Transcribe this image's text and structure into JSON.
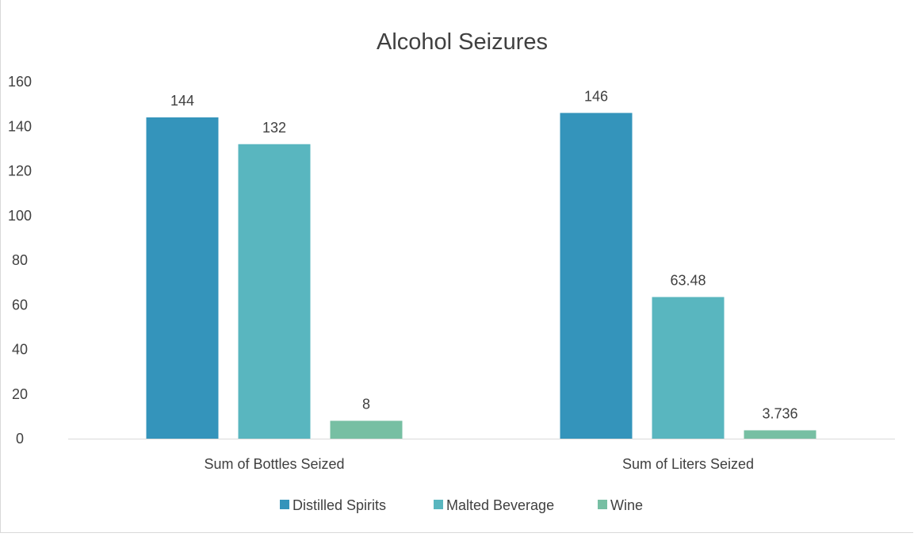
{
  "chart_data": {
    "type": "bar",
    "title": "Alcohol Seizures",
    "categories": [
      "Sum of Bottles Seized",
      "Sum of Liters Seized"
    ],
    "series": [
      {
        "name": "Distilled Spirits",
        "values": [
          144,
          146
        ],
        "labels": [
          "144",
          "146"
        ],
        "color": "#3494bb"
      },
      {
        "name": "Malted Beverage",
        "values": [
          132,
          63.48
        ],
        "labels": [
          "132",
          "63.48"
        ],
        "color": "#59b6bf"
      },
      {
        "name": "Wine",
        "values": [
          8,
          3.736
        ],
        "labels": [
          "8",
          "3.736"
        ],
        "color": "#77bfa3"
      }
    ],
    "ylim": [
      0,
      160
    ],
    "yticks": [
      "0",
      "20",
      "40",
      "60",
      "80",
      "100",
      "120",
      "140",
      "160"
    ],
    "grid": false,
    "legend": "bottom"
  }
}
